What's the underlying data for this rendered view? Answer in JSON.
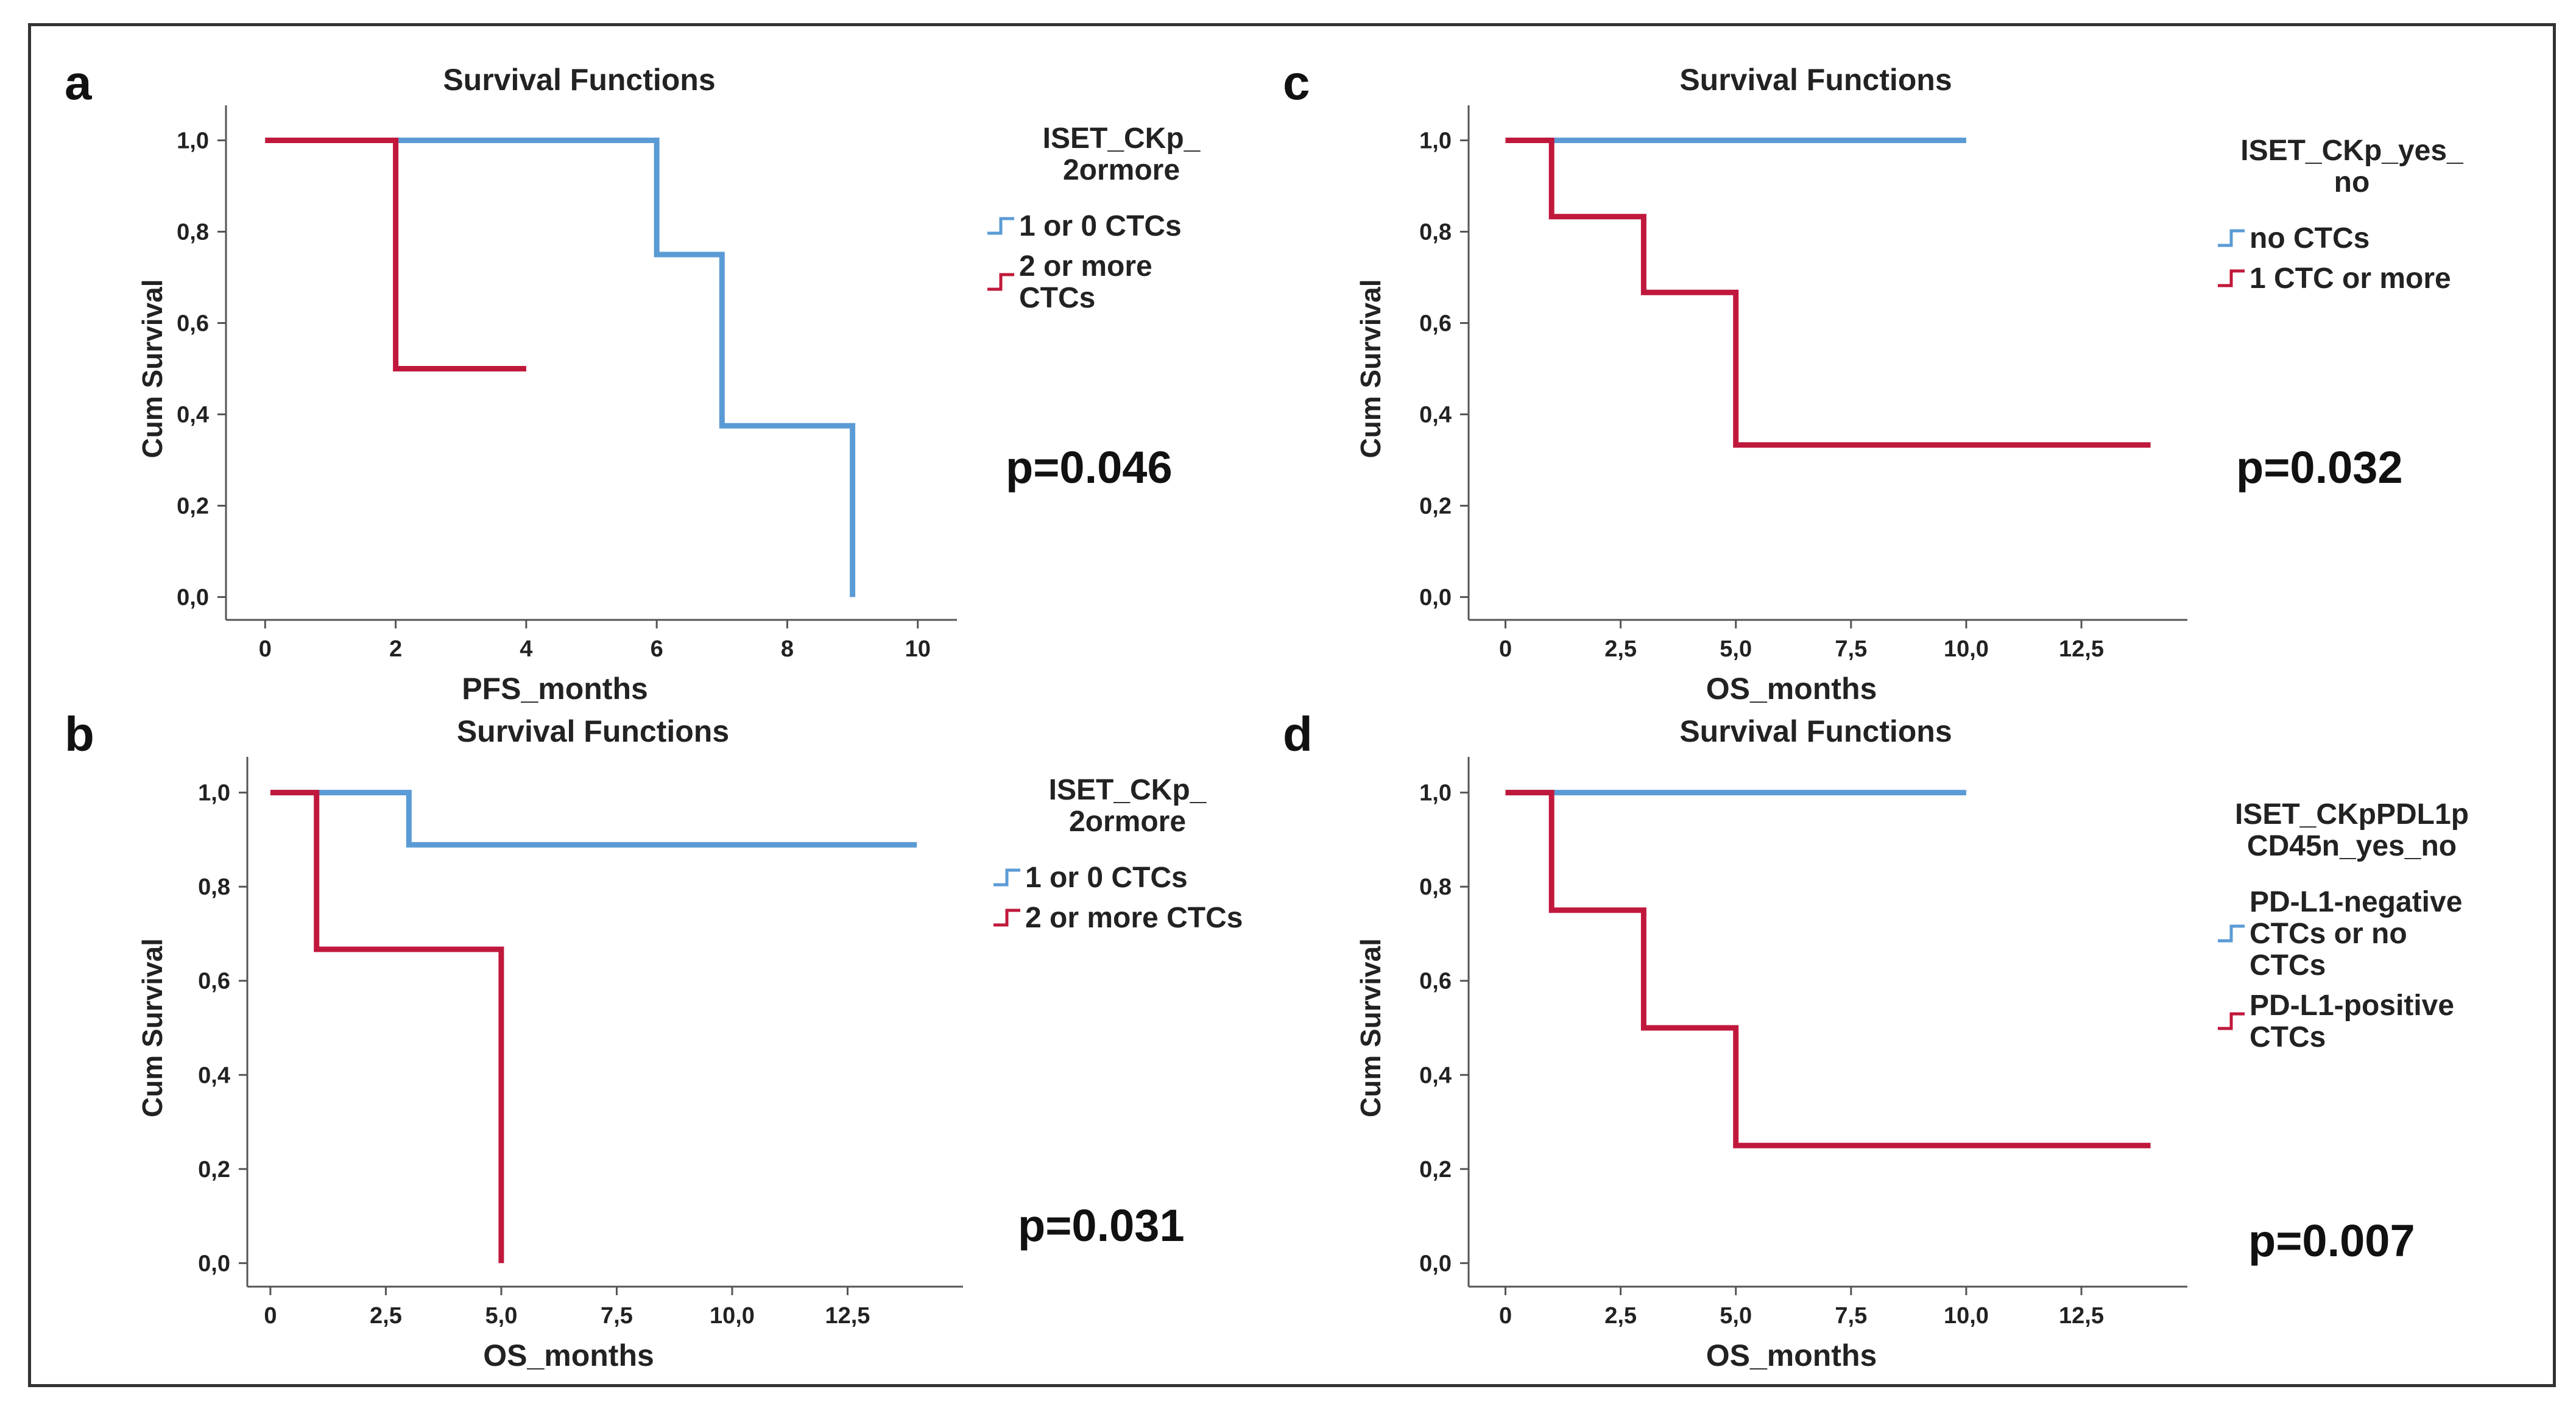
{
  "colors": {
    "series1": "#5b9bd5",
    "series2": "#c0183c",
    "axis": "#555555",
    "text": "#222222"
  },
  "chart_data": [
    {
      "type": "step-line",
      "panel_letter": "a",
      "title": "Survival Functions",
      "xlabel": "PFS_months",
      "ylabel": "Cum Survival",
      "x_ticks": [
        "0",
        "2",
        "4",
        "6",
        "8",
        "10"
      ],
      "x_tick_values": [
        0,
        2,
        4,
        6,
        8,
        10
      ],
      "y_ticks": [
        "0,0",
        "0,2",
        "0,4",
        "0,6",
        "0,8",
        "1,0"
      ],
      "y_tick_values": [
        0,
        0.2,
        0.4,
        0.6,
        0.8,
        1.0
      ],
      "xlim": [
        -0.6,
        10.6
      ],
      "ylim": [
        -0.05,
        1.05
      ],
      "legend_title": [
        "ISET_CKp_",
        "2ormore"
      ],
      "series": [
        {
          "name": [
            "1 or 0 CTCs"
          ],
          "color": "#5b9bd5",
          "x": [
            0,
            6,
            6,
            7,
            7,
            9,
            9
          ],
          "y": [
            1.0,
            1.0,
            0.75,
            0.75,
            0.375,
            0.375,
            0.0
          ]
        },
        {
          "name": [
            "2 or more",
            "CTCs"
          ],
          "color": "#c0183c",
          "x": [
            0,
            2,
            2,
            4
          ],
          "y": [
            1.0,
            1.0,
            0.5,
            0.5
          ]
        }
      ],
      "p_value": "p=0.046"
    },
    {
      "type": "step-line",
      "panel_letter": "b",
      "title": "Survival Functions",
      "xlabel": "OS_months",
      "ylabel": "Cum Survival",
      "x_ticks": [
        "0",
        "2,5",
        "5,0",
        "7,5",
        "10,0",
        "12,5"
      ],
      "x_tick_values": [
        0,
        2.5,
        5,
        7.5,
        10,
        12.5
      ],
      "y_ticks": [
        "0,0",
        "0,2",
        "0,4",
        "0,6",
        "0,8",
        "1,0"
      ],
      "y_tick_values": [
        0,
        0.2,
        0.4,
        0.6,
        0.8,
        1.0
      ],
      "xlim": [
        -0.5,
        15.0
      ],
      "ylim": [
        -0.05,
        1.05
      ],
      "legend_title": [
        "ISET_CKp_",
        "2ormore"
      ],
      "series": [
        {
          "name": [
            "1 or 0 CTCs"
          ],
          "color": "#5b9bd5",
          "x": [
            0,
            3,
            3,
            14
          ],
          "y": [
            1.0,
            1.0,
            0.889,
            0.889
          ]
        },
        {
          "name": [
            "2 or more CTCs"
          ],
          "color": "#c0183c",
          "x": [
            0,
            1,
            1,
            5,
            5
          ],
          "y": [
            1.0,
            1.0,
            0.667,
            0.667,
            0.0
          ]
        }
      ],
      "p_value": "p=0.031"
    },
    {
      "type": "step-line",
      "panel_letter": "c",
      "title": "Survival Functions",
      "xlabel": "OS_months",
      "ylabel": "Cum Survival",
      "x_ticks": [
        "0",
        "2,5",
        "5,0",
        "7,5",
        "10,0",
        "12,5"
      ],
      "x_tick_values": [
        0,
        2.5,
        5,
        7.5,
        10,
        12.5
      ],
      "y_ticks": [
        "0,0",
        "0,2",
        "0,4",
        "0,6",
        "0,8",
        "1,0"
      ],
      "y_tick_values": [
        0,
        0.2,
        0.4,
        0.6,
        0.8,
        1.0
      ],
      "xlim": [
        -0.8,
        14.8
      ],
      "ylim": [
        -0.05,
        1.05
      ],
      "legend_title": [
        "ISET_CKp_yes_",
        "no"
      ],
      "series": [
        {
          "name": [
            "no CTCs"
          ],
          "color": "#5b9bd5",
          "x": [
            0,
            10
          ],
          "y": [
            1.0,
            1.0
          ]
        },
        {
          "name": [
            "1 CTC or more"
          ],
          "color": "#c0183c",
          "x": [
            0,
            1,
            1,
            3,
            3,
            5,
            5,
            14
          ],
          "y": [
            1.0,
            1.0,
            0.833,
            0.833,
            0.667,
            0.667,
            0.333,
            0.333
          ]
        }
      ],
      "p_value": "p=0.032"
    },
    {
      "type": "step-line",
      "panel_letter": "d",
      "title": "Survival Functions",
      "xlabel": "OS_months",
      "ylabel": "Cum Survival",
      "x_ticks": [
        "0",
        "2,5",
        "5,0",
        "7,5",
        "10,0",
        "12,5"
      ],
      "x_tick_values": [
        0,
        2.5,
        5,
        7.5,
        10,
        12.5
      ],
      "y_ticks": [
        "0,0",
        "0,2",
        "0,4",
        "0,6",
        "0,8",
        "1,0"
      ],
      "y_tick_values": [
        0,
        0.2,
        0.4,
        0.6,
        0.8,
        1.0
      ],
      "xlim": [
        -0.8,
        14.8
      ],
      "ylim": [
        -0.05,
        1.05
      ],
      "legend_title": [
        "ISET_CKpPDL1p",
        "CD45n_yes_no"
      ],
      "series": [
        {
          "name": [
            "PD-L1-negative",
            "CTCs or no",
            "CTCs"
          ],
          "color": "#5b9bd5",
          "x": [
            0,
            10
          ],
          "y": [
            1.0,
            1.0
          ]
        },
        {
          "name": [
            "PD-L1-positive",
            "CTCs"
          ],
          "color": "#c0183c",
          "x": [
            0,
            1,
            1,
            3,
            3,
            5,
            5,
            14
          ],
          "y": [
            1.0,
            1.0,
            0.75,
            0.75,
            0.5,
            0.5,
            0.25,
            0.25
          ]
        }
      ],
      "p_value": "p=0.007"
    }
  ]
}
